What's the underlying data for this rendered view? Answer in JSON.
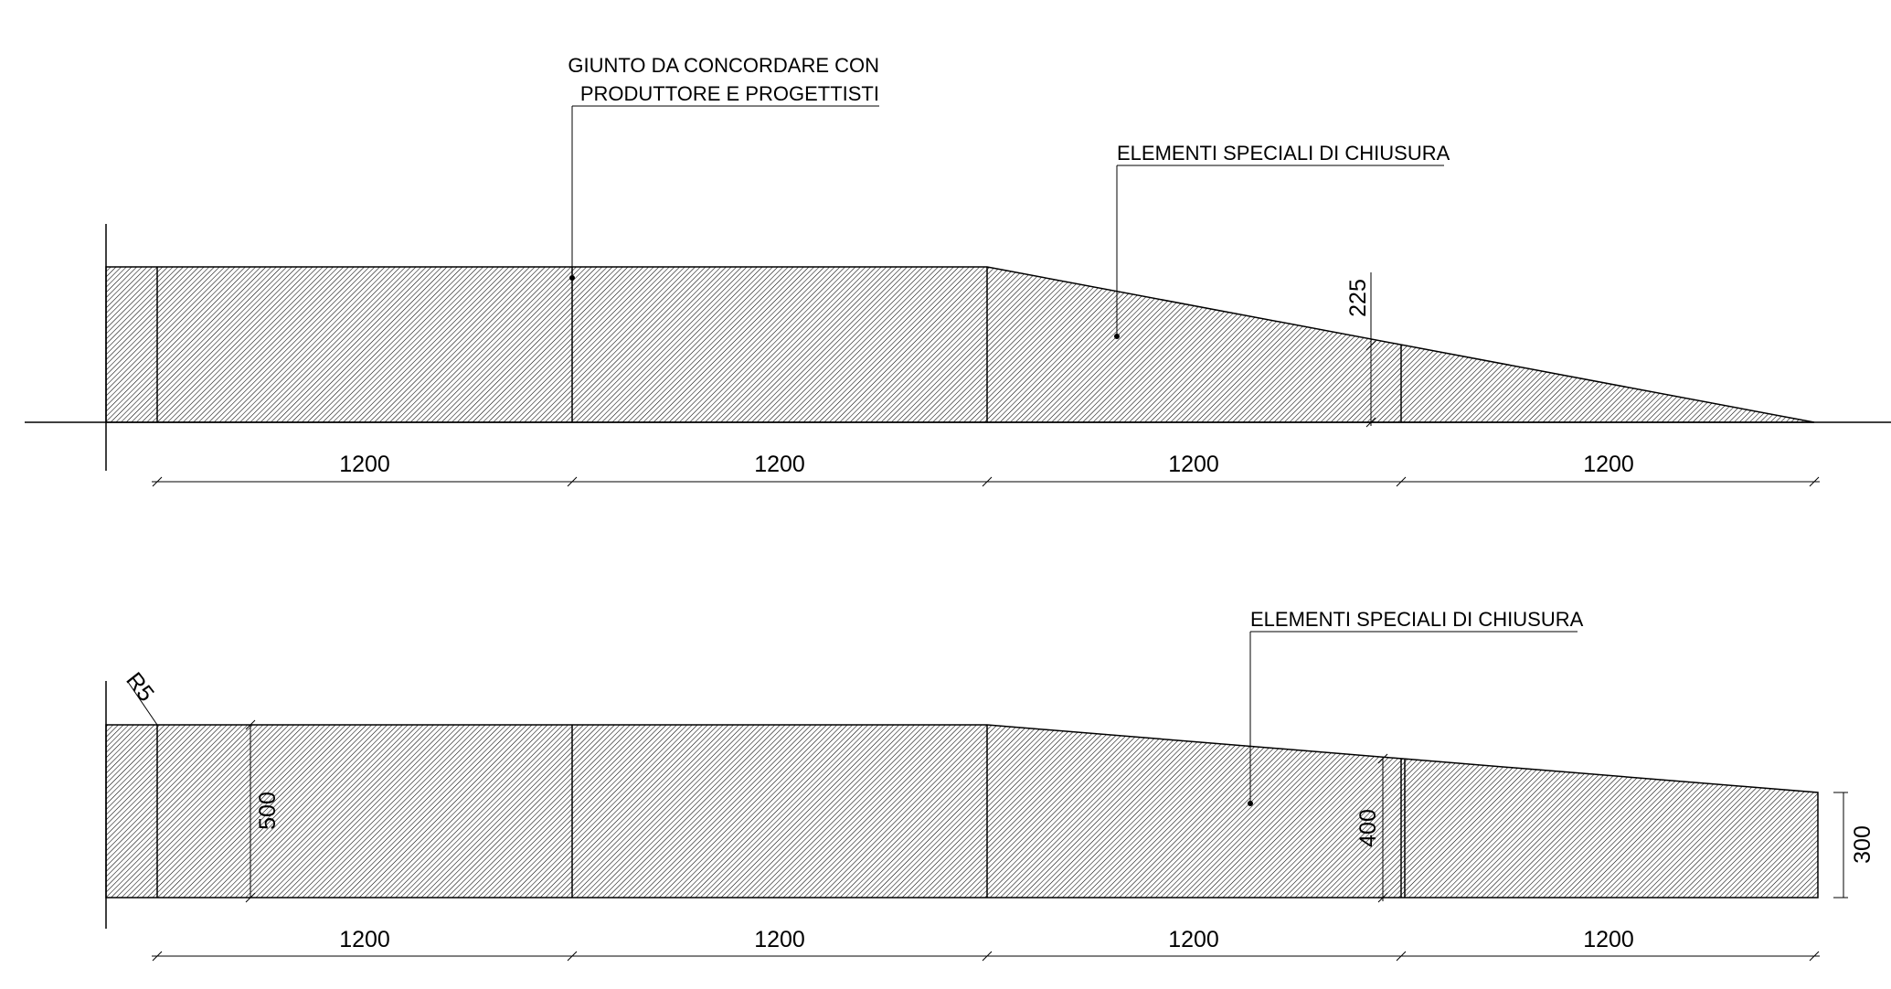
{
  "drawing": {
    "annotations": {
      "joint_note_line1": "GIUNTO DA CONCORDARE CON",
      "joint_note_line2": "PRODUTTORE E PROGETTISTI",
      "special_elements_top": "ELEMENTI SPECIALI DI CHIUSURA",
      "special_elements_bottom": "ELEMENTI SPECIALI DI CHIUSURA"
    },
    "top_view": {
      "segment_dimensions": [
        "1200",
        "1200",
        "1200",
        "1200"
      ],
      "height_dimension": "225"
    },
    "bottom_view": {
      "segment_dimensions": [
        "1200",
        "1200",
        "1200",
        "1200"
      ],
      "radius_label": "R5",
      "height_start": "500",
      "height_mid": "400",
      "height_end": "300"
    },
    "hatch_color": "#000000"
  }
}
